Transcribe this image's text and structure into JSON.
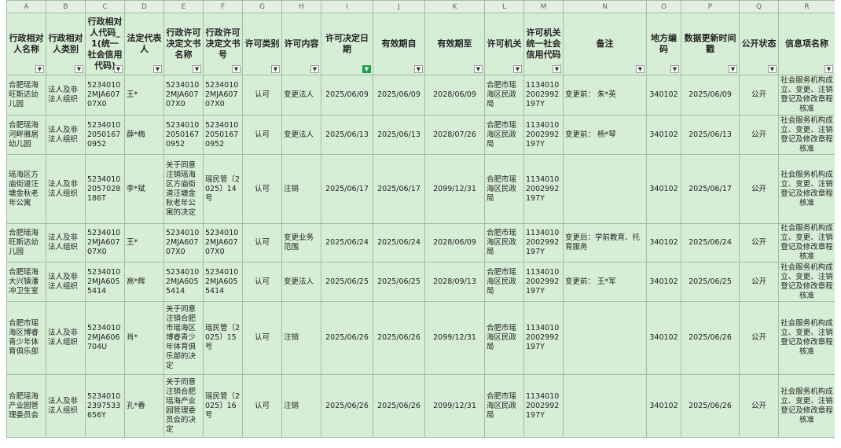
{
  "table": {
    "column_letters": [
      "A",
      "B",
      "C",
      "D",
      "E",
      "F",
      "G",
      "H",
      "I",
      "J",
      "K",
      "L",
      "M",
      "N",
      "O",
      "P",
      "Q",
      "R"
    ],
    "headers": [
      "行政相对人名称",
      "行政相对人类别",
      "行政相对人代码_1(统一社会信用代码)",
      "法定代表人",
      "行政许可决定文书名称",
      "行政许可决定文书号",
      "许可类别",
      "许可内容",
      "许可决定日期",
      "有效期自",
      "有效期至",
      "许可机关",
      "许可机关统一社会信用代码",
      "备注",
      "地方编码",
      "数据更新时间戳",
      "公开状态",
      "信息项名称"
    ],
    "rows": [
      [
        "合肥瑶海旺斯达幼儿园",
        "法人及非法人组织",
        "52340102MJA60707X0",
        "王*",
        "52340102MJA60707X0",
        "52340102MJA60707X0",
        "认可",
        "变更法人",
        "2025/06/09",
        "2025/06/09",
        "2028/06/09",
        "合肥市瑶海区民政局",
        "11340102002992197Y",
        "变更前：  朱*英",
        "340102",
        "2025/06/09",
        "公开",
        "社会服务机构成立、变更、注销登记及修改章程核准"
      ],
      [
        "合肥瑶海河畔雅居幼儿园",
        "法人及非法人组织",
        "523401020501670952",
        "薛*梅",
        "523401020501670952",
        "523401020501670952",
        "认可",
        "变更法人",
        "2025/06/13",
        "2025/06/13",
        "2028/07/26",
        "合肥市瑶海区民政局",
        "11340102002992197Y",
        "变更前：  杨*琴",
        "340102",
        "2025/06/13",
        "公开",
        "社会服务机构成立、变更、注销登记及修改章程核准"
      ],
      [
        "瑶海区方庙街道汪塘金秋老年公寓",
        "法人及非法人组织",
        "52340102057028186T",
        "李*斌",
        "关于同意注销瑶海区方庙街道汪塘金秋老年公寓的决定",
        "瑶民管〔2025〕14号",
        "认可",
        "注销",
        "2025/06/17",
        "2025/06/17",
        "2099/12/31",
        "合肥市瑶海区民政局",
        "11340102002992197Y",
        null,
        "340102",
        "2025/06/17",
        "公开",
        "社会服务机构成立、变更、注销登记及修改章程核准"
      ],
      [
        "合肥瑶海旺斯达幼儿园",
        "法人及非法人组织",
        "52340102MJA60707X0",
        "王*",
        "52340102MJA60707X0",
        "52340102MJA60707X0",
        "认可",
        "变更业务范围",
        "2025/06/24",
        "2025/06/24",
        "2028/06/09",
        "合肥市瑶海区民政局",
        "11340102002992197Y",
        "变更后：学前教育、托育服务",
        "340102",
        "2025/06/24",
        "公开",
        "社会服务机构成立、变更、注销登记及修改章程核准"
      ],
      [
        "合肥瑶海大兴镇潘冲卫生室",
        "法人及非法人组织",
        "52340102MJA6055414",
        "高*辉",
        "52340102MJA6055414",
        "52340102MJA6055414",
        "认可",
        "变更法人",
        "2025/06/25",
        "2025/06/25",
        "2028/09/13",
        "合肥市瑶海区民政局",
        "11340102002992197Y",
        "变更前：  王*军",
        "340102",
        "2025/06/25",
        "公开",
        "社会服务机构成立、变更、注销登记及修改章程核准"
      ],
      [
        "合肥市瑶海区博睿青少年体育俱乐部",
        "法人及非法人组织",
        "52340102MJA606704U",
        "肖*",
        "关于同意注销合肥市瑶海区博睿青少年体育俱乐部的决定",
        "瑶民管〔2025〕15号",
        "认可",
        "注销",
        "2025/06/26",
        "2025/06/26",
        "2099/12/31",
        "合肥市瑶海区民政局",
        "11340102002992197Y",
        null,
        "340102",
        "2025/06/26",
        "公开",
        "社会服务机构成立、变更、注销登记及修改章程核准"
      ],
      [
        "合肥瑶海产业园管理委员会",
        "法人及非法人组织",
        "52340102397533656Y",
        "孔*春",
        "关于同意注销合肥瑶海产业园管理委员会的决定",
        "瑶民管〔2025〕16号",
        "认可",
        "注销",
        "2025/06/26",
        "2025/06/26",
        "2099/12/31",
        "合肥市瑶海区民政局",
        "11340102002992197Y",
        null,
        "340102",
        "2025/06/26",
        "公开",
        "社会服务机构成立、变更、注销登记及修改章程核准"
      ]
    ]
  }
}
